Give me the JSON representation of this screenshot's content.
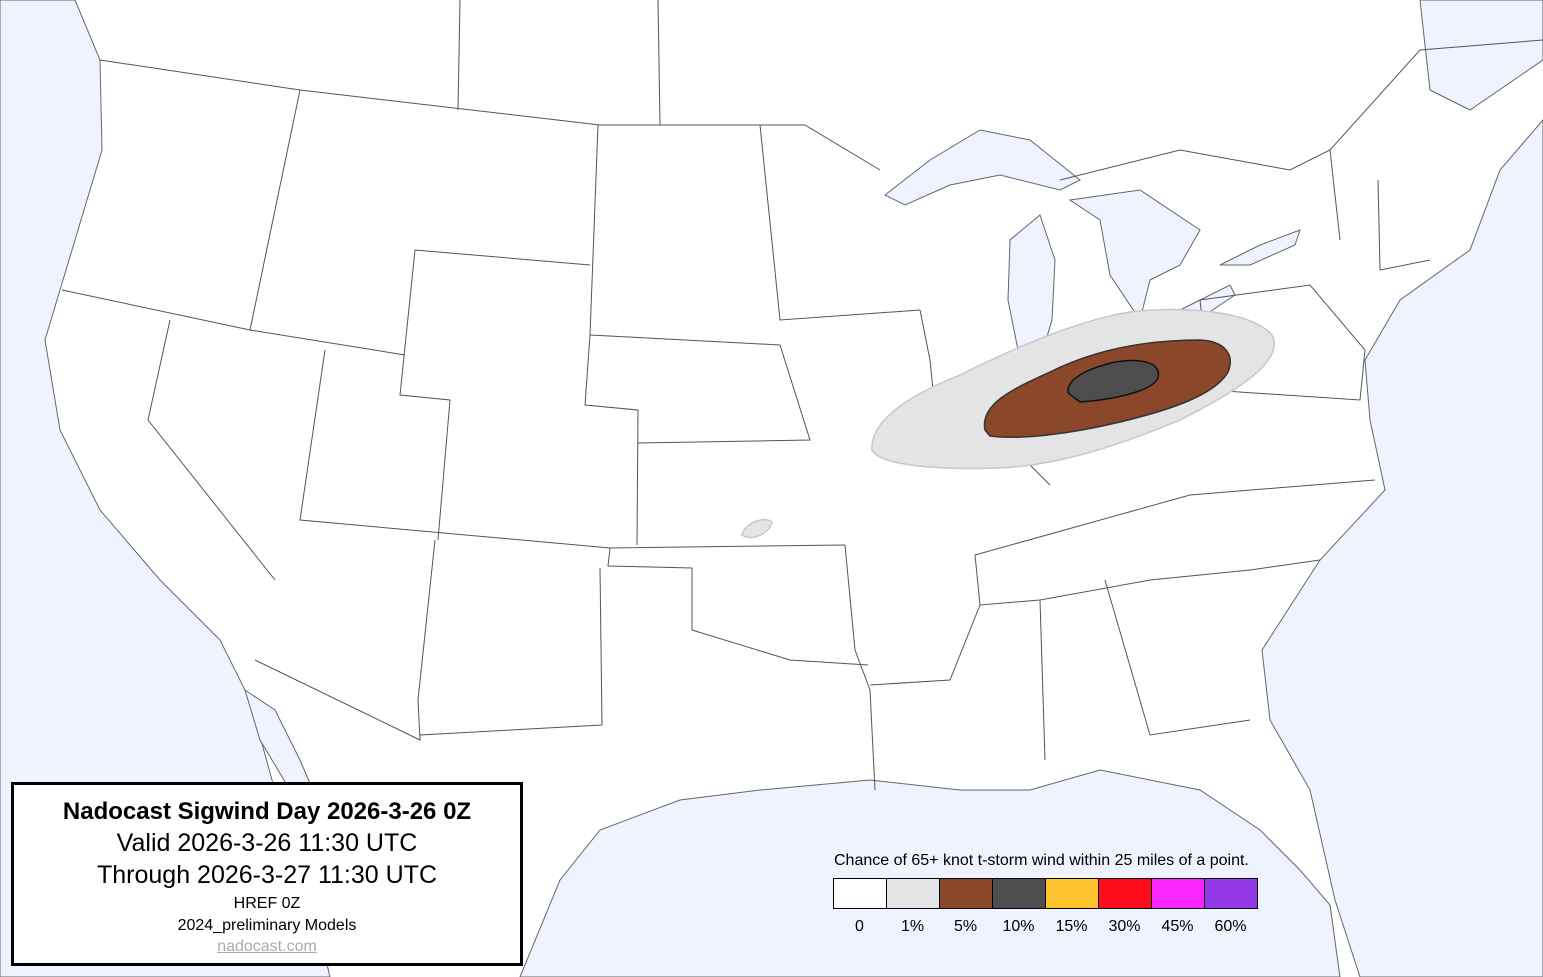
{
  "title_box": {
    "title": "Nadocast Sigwind Day 2026-3-26 0Z",
    "valid": "Valid 2026-3-26 11:30 UTC",
    "through": "Through 2026-3-27 11:30 UTC",
    "model": "HREF 0Z",
    "models_version": "2024_preliminary Models",
    "link": "nadocast.com"
  },
  "legend": {
    "title": "Chance of 65+ knot t-storm wind within 25 miles of a point.",
    "items": [
      {
        "label": "0",
        "color": "#ffffff"
      },
      {
        "label": "1%",
        "color": "#e4e4e4"
      },
      {
        "label": "5%",
        "color": "#8b4729"
      },
      {
        "label": "10%",
        "color": "#4d4d4d"
      },
      {
        "label": "15%",
        "color": "#fec42f"
      },
      {
        "label": "30%",
        "color": "#fd0c1c"
      },
      {
        "label": "45%",
        "color": "#fc24fc"
      },
      {
        "label": "60%",
        "color": "#9339e7"
      }
    ]
  },
  "colors": {
    "water": "#eef3ff",
    "land": "#ffffff",
    "borders": "#555555"
  },
  "forecast_areas": [
    {
      "level": "1%",
      "region": "Midwest / Ohio Valley, plus small area in Kansas"
    },
    {
      "level": "5%",
      "region": "Illinois, Indiana, Ohio"
    },
    {
      "level": "10%",
      "region": "Indiana / Ohio"
    }
  ]
}
